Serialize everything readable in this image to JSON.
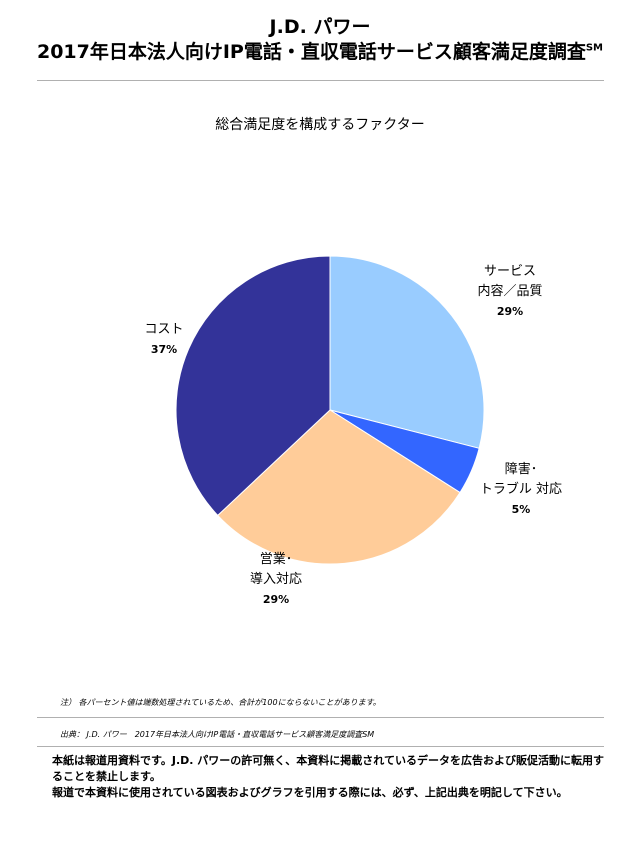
{
  "header": {
    "title_line1": "J.D. パワー",
    "title_line2": "2017年日本法人向けIP電話・直収電話サービス顧客満足度調査",
    "title_mark": "SM"
  },
  "chart_data": {
    "type": "pie",
    "title": "総合満足度を構成するファクター",
    "slices": [
      {
        "label_line1": "サービス",
        "label_line2": "内容／品質",
        "value": 29,
        "pct_text": "29%",
        "color": "#99CCFF"
      },
      {
        "label_line1": "障害･",
        "label_line2": "トラブル 対応",
        "value": 5,
        "pct_text": "5%",
        "color": "#3366FF"
      },
      {
        "label_line1": "営業･",
        "label_line2": "導入対応",
        "value": 29,
        "pct_text": "29%",
        "color": "#FFCC99"
      },
      {
        "label_line1": "コスト",
        "label_line2": "",
        "value": 37,
        "pct_text": "37%",
        "color": "#333399"
      }
    ]
  },
  "notes": {
    "note": "注） 各パーセント値は端数処理されているため、合計が100にならないことがあります。",
    "source": "出典： J.D. パワー　2017年日本法人向けIP電話・直収電話サービス顧客満足度調査SM"
  },
  "footer": {
    "line1": "本紙は報道用資料です。J.D. パワーの許可無く、本資料に掲載されているデータを広告および販促活動に転用することを禁止します。",
    "line2": "報道で本資料に使用されている図表およびグラフを引用する際には、必ず、上記出典を明記して下さい。"
  }
}
